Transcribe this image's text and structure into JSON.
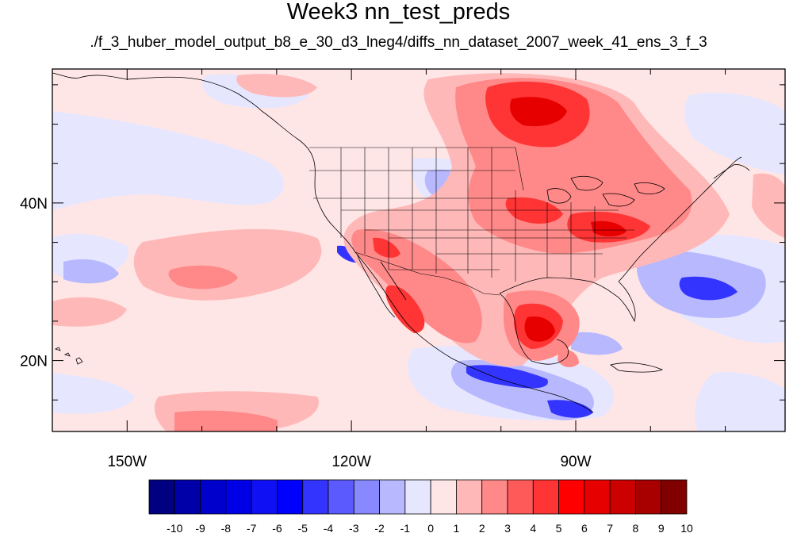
{
  "title": "Week3 nn_test_preds",
  "subtitle": "./f_3_huber_model_output_b8_e_30_d3_lneg4/diffs_nn_dataset_2007_week_41_ens_3_f_3",
  "map": {
    "lon_range": [
      -160,
      -62
    ],
    "lat_range": [
      11,
      57
    ],
    "lat_ticks": [
      {
        "value": 40,
        "label": "40N"
      },
      {
        "value": 20,
        "label": "20N"
      }
    ],
    "lon_ticks": [
      {
        "value": -150,
        "label": "150W"
      },
      {
        "value": -120,
        "label": "120W"
      },
      {
        "value": -90,
        "label": "90W"
      }
    ]
  },
  "colorbar": {
    "labels": [
      "-10",
      "-9",
      "-8",
      "-7",
      "-6",
      "-5",
      "-4",
      "-3",
      "-2",
      "-1",
      "0",
      "1",
      "2",
      "3",
      "4",
      "5",
      "6",
      "7",
      "8",
      "9",
      "10"
    ],
    "colors": [
      "#000080",
      "#0000a8",
      "#0000cc",
      "#0000e6",
      "#1010f5",
      "#0000ff",
      "#3434ff",
      "#5a5aff",
      "#8888ff",
      "#b8b8ff",
      "#e6e6ff",
      "#ffe6e6",
      "#ffb8b8",
      "#ff8888",
      "#ff5a5a",
      "#ff3434",
      "#ff0000",
      "#e60000",
      "#cc0000",
      "#a80000",
      "#800000"
    ]
  },
  "anomaly_colors": {
    "background": "#ffe6e6",
    "light_red": "#ffb8b8",
    "red": "#ff8888",
    "deep_red": "#ff3434",
    "light_blue": "#e6e6ff",
    "blue": "#b8b8ff",
    "deep_blue": "#3434ff"
  }
}
